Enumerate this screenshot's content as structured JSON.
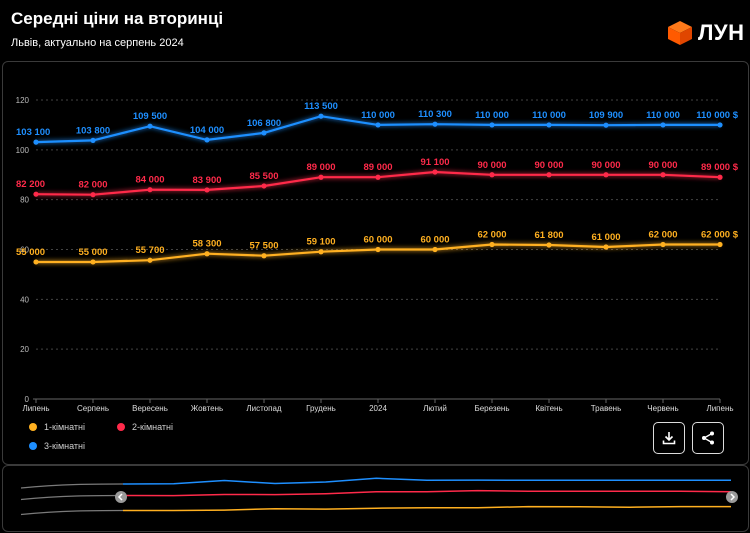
{
  "header": {
    "title": "Середні ціни на вторинці",
    "subtitle": "Львів, актуально на серпень 2024",
    "logo_text": "ЛУН"
  },
  "legend": [
    {
      "label": "1-кімнатні",
      "color": "#ffb020"
    },
    {
      "label": "2-кімнатні",
      "color": "#ff2a4a"
    },
    {
      "label": "3-кімнатні",
      "color": "#1e8fff"
    }
  ],
  "buttons": {
    "download_icon": "download-icon",
    "share_icon": "share-icon"
  },
  "chart_data": {
    "type": "line",
    "title": "Середні ціни на вторинці",
    "categories": [
      "Липень",
      "Серпень",
      "Вересень",
      "Жовтень",
      "Листопад",
      "Грудень",
      "2024",
      "Лютий",
      "Березень",
      "Квітень",
      "Травень",
      "Червень",
      "Липень"
    ],
    "ylim": [
      0,
      120
    ],
    "yticks": [
      0,
      20,
      40,
      60,
      80,
      100,
      120
    ],
    "grid": true,
    "legend_position": "bottom-left",
    "series": [
      {
        "name": "1-кімнатні",
        "color": "#ffb020",
        "values": [
          55000,
          55000,
          55700,
          58300,
          57500,
          59100,
          60000,
          60000,
          62000,
          61800,
          61000,
          62000,
          62000
        ],
        "labels": [
          "55 000",
          "55 000",
          "55 700",
          "58 300",
          "57 500",
          "59 100",
          "60 000",
          "60 000",
          "62 000",
          "61 800",
          "61 000",
          "62 000",
          "62 000 $"
        ]
      },
      {
        "name": "2-кімнатні",
        "color": "#ff2a4a",
        "values": [
          82200,
          82000,
          84000,
          83900,
          85500,
          89000,
          89000,
          91100,
          90000,
          90000,
          90000,
          90000,
          89000
        ],
        "labels": [
          "82 200",
          "82 000",
          "84 000",
          "83 900",
          "85 500",
          "89 000",
          "89 000",
          "91 100",
          "90 000",
          "90 000",
          "90 000",
          "90 000",
          "89 000 $"
        ]
      },
      {
        "name": "3-кімнатні",
        "color": "#1e8fff",
        "values": [
          103100,
          103800,
          109500,
          104000,
          106800,
          113500,
          110000,
          110300,
          110000,
          110000,
          109900,
          110000,
          110000
        ],
        "labels": [
          "103 100",
          "103 800",
          "109 500",
          "104 000",
          "106 800",
          "113 500",
          "110 000",
          "110 300",
          "110 000",
          "110 000",
          "109 900",
          "110 000",
          "110 000 $"
        ]
      }
    ]
  }
}
